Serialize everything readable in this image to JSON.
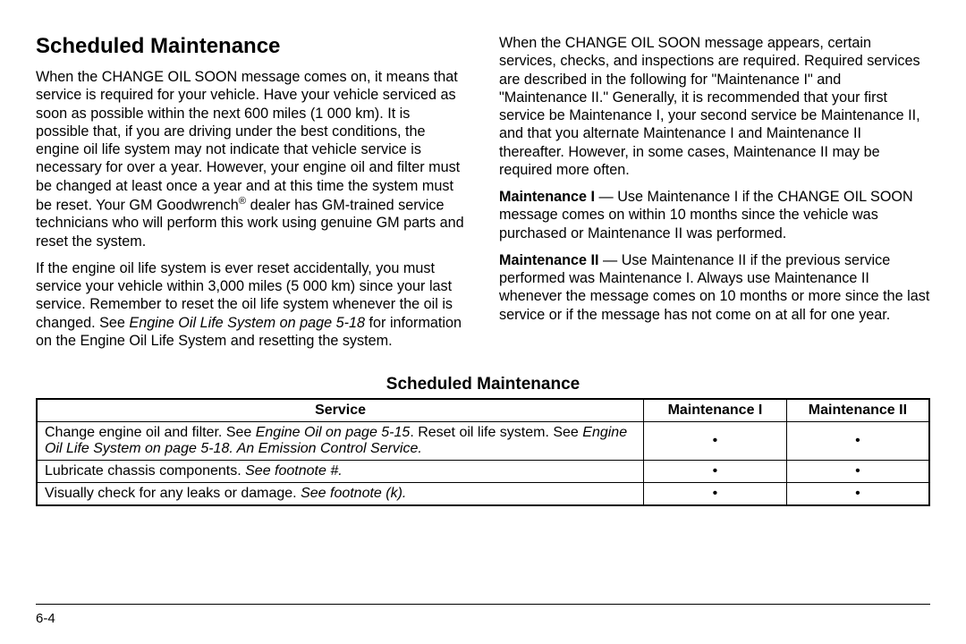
{
  "heading": "Scheduled Maintenance",
  "left": {
    "p1_a": "When the CHANGE OIL SOON message comes on, it means that service is required for your vehicle. Have your vehicle serviced as soon as possible within the next 600 miles (1 000 km). It is possible that, if you are driving under the best conditions, the engine oil life system may not indicate that vehicle service is necessary for over a year. However, your engine oil and filter must be changed at least once a year and at this time the system must be reset. Your GM Goodwrench",
    "p1_b": " dealer has GM-trained service technicians who will perform this work using genuine GM parts and reset the system.",
    "p2_a": "If the engine oil life system is ever reset accidentally, you must service your vehicle within 3,000 miles (5 000 km) since your last service. Remember to reset the oil life system whenever the oil is changed. See ",
    "p2_i": "Engine Oil Life System on page 5-18",
    "p2_b": " for information on the Engine Oil Life System and resetting the system."
  },
  "right": {
    "p1": "When the CHANGE OIL SOON message appears, certain services, checks, and inspections are required. Required services are described in the following for \"Maintenance I\" and \"Maintenance II.\" Generally, it is recommended that your first service be Maintenance I, your second service be Maintenance II, and that you alternate Maintenance I and Maintenance II thereafter. However, in some cases, Maintenance II may be required more often.",
    "p2_b": "Maintenance I",
    "p2_a": " — Use Maintenance I if the CHANGE OIL SOON message comes on within 10 months since the vehicle was purchased or Maintenance II was performed.",
    "p3_b": "Maintenance II",
    "p3_a": " — Use Maintenance II if the previous service performed was Maintenance I. Always use Maintenance II whenever the message comes on 10 months or more since the last service or if the message has not come on at all for one year."
  },
  "table": {
    "title": "Scheduled Maintenance",
    "headers": [
      "Service",
      "Maintenance I",
      "Maintenance II"
    ],
    "rows": [
      {
        "parts": [
          {
            "t": "Change engine oil and filter. See ",
            "i": false
          },
          {
            "t": "Engine Oil on page 5-15",
            "i": true
          },
          {
            "t": ". Reset oil life system. See ",
            "i": false
          },
          {
            "t": "Engine Oil Life System on page 5-18. An Emission Control Service.",
            "i": true
          }
        ],
        "m1": "•",
        "m2": "•"
      },
      {
        "parts": [
          {
            "t": "Lubricate chassis components. ",
            "i": false
          },
          {
            "t": "See footnote #.",
            "i": true
          }
        ],
        "m1": "•",
        "m2": "•"
      },
      {
        "parts": [
          {
            "t": "Visually check for any leaks or damage. ",
            "i": false
          },
          {
            "t": "See footnote (k).",
            "i": true
          }
        ],
        "m1": "•",
        "m2": "•"
      }
    ],
    "col_widths": [
      "68%",
      "16%",
      "16%"
    ]
  },
  "page_number": "6-4"
}
